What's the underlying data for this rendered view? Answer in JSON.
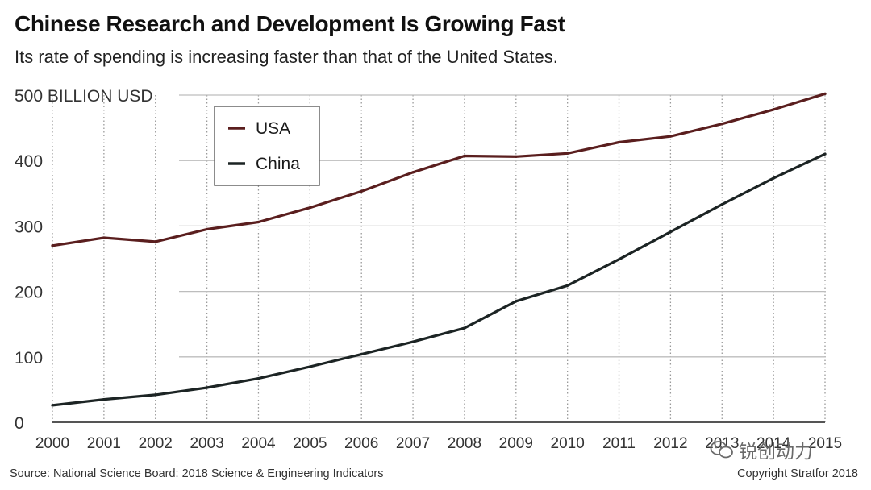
{
  "header": {
    "title": "Chinese Research and Development Is Growing Fast",
    "subtitle": "Its rate of spending is increasing faster than that of the United States."
  },
  "footer": {
    "source": "Source: National Science Board: 2018 Science & Engineering Indicators",
    "copyright": "Copyright Stratfor 2018"
  },
  "watermark": {
    "text": "锐创动力",
    "icon": "wechat-icon"
  },
  "colors": {
    "usa": "#5a1e1e",
    "china": "#1c2424",
    "grid": "#9a9a9a",
    "axis": "#555555"
  },
  "chart_data": {
    "type": "line",
    "title": "Chinese Research and Development Is Growing Fast",
    "subtitle": "Its rate of spending is increasing faster than that of the United States.",
    "xlabel": "",
    "ylabel": "BILLION USD",
    "x": [
      2000,
      2001,
      2002,
      2003,
      2004,
      2005,
      2006,
      2007,
      2008,
      2009,
      2010,
      2011,
      2012,
      2013,
      2014,
      2015
    ],
    "x_tick_labels": [
      "2000",
      "2001",
      "2002",
      "2003",
      "2004",
      "2005",
      "2006",
      "2007",
      "2008",
      "2009",
      "2010",
      "2011",
      "2012",
      "2013",
      "2014",
      "2015"
    ],
    "y_ticks": [
      0,
      100,
      200,
      300,
      400,
      500
    ],
    "y_tick_labels": [
      "0",
      "100",
      "200",
      "300",
      "400",
      "500 BILLION USD"
    ],
    "ylim": [
      0,
      500
    ],
    "grid": "vertical dotted, horizontal solid",
    "legend_position": "top-left",
    "series": [
      {
        "name": "USA",
        "values": [
          270,
          282,
          276,
          295,
          306,
          328,
          353,
          382,
          407,
          406,
          411,
          428,
          437,
          456,
          478,
          502
        ]
      },
      {
        "name": "China",
        "values": [
          26,
          35,
          42,
          53,
          67,
          85,
          104,
          123,
          144,
          185,
          209,
          249,
          291,
          333,
          373,
          410
        ]
      }
    ]
  }
}
